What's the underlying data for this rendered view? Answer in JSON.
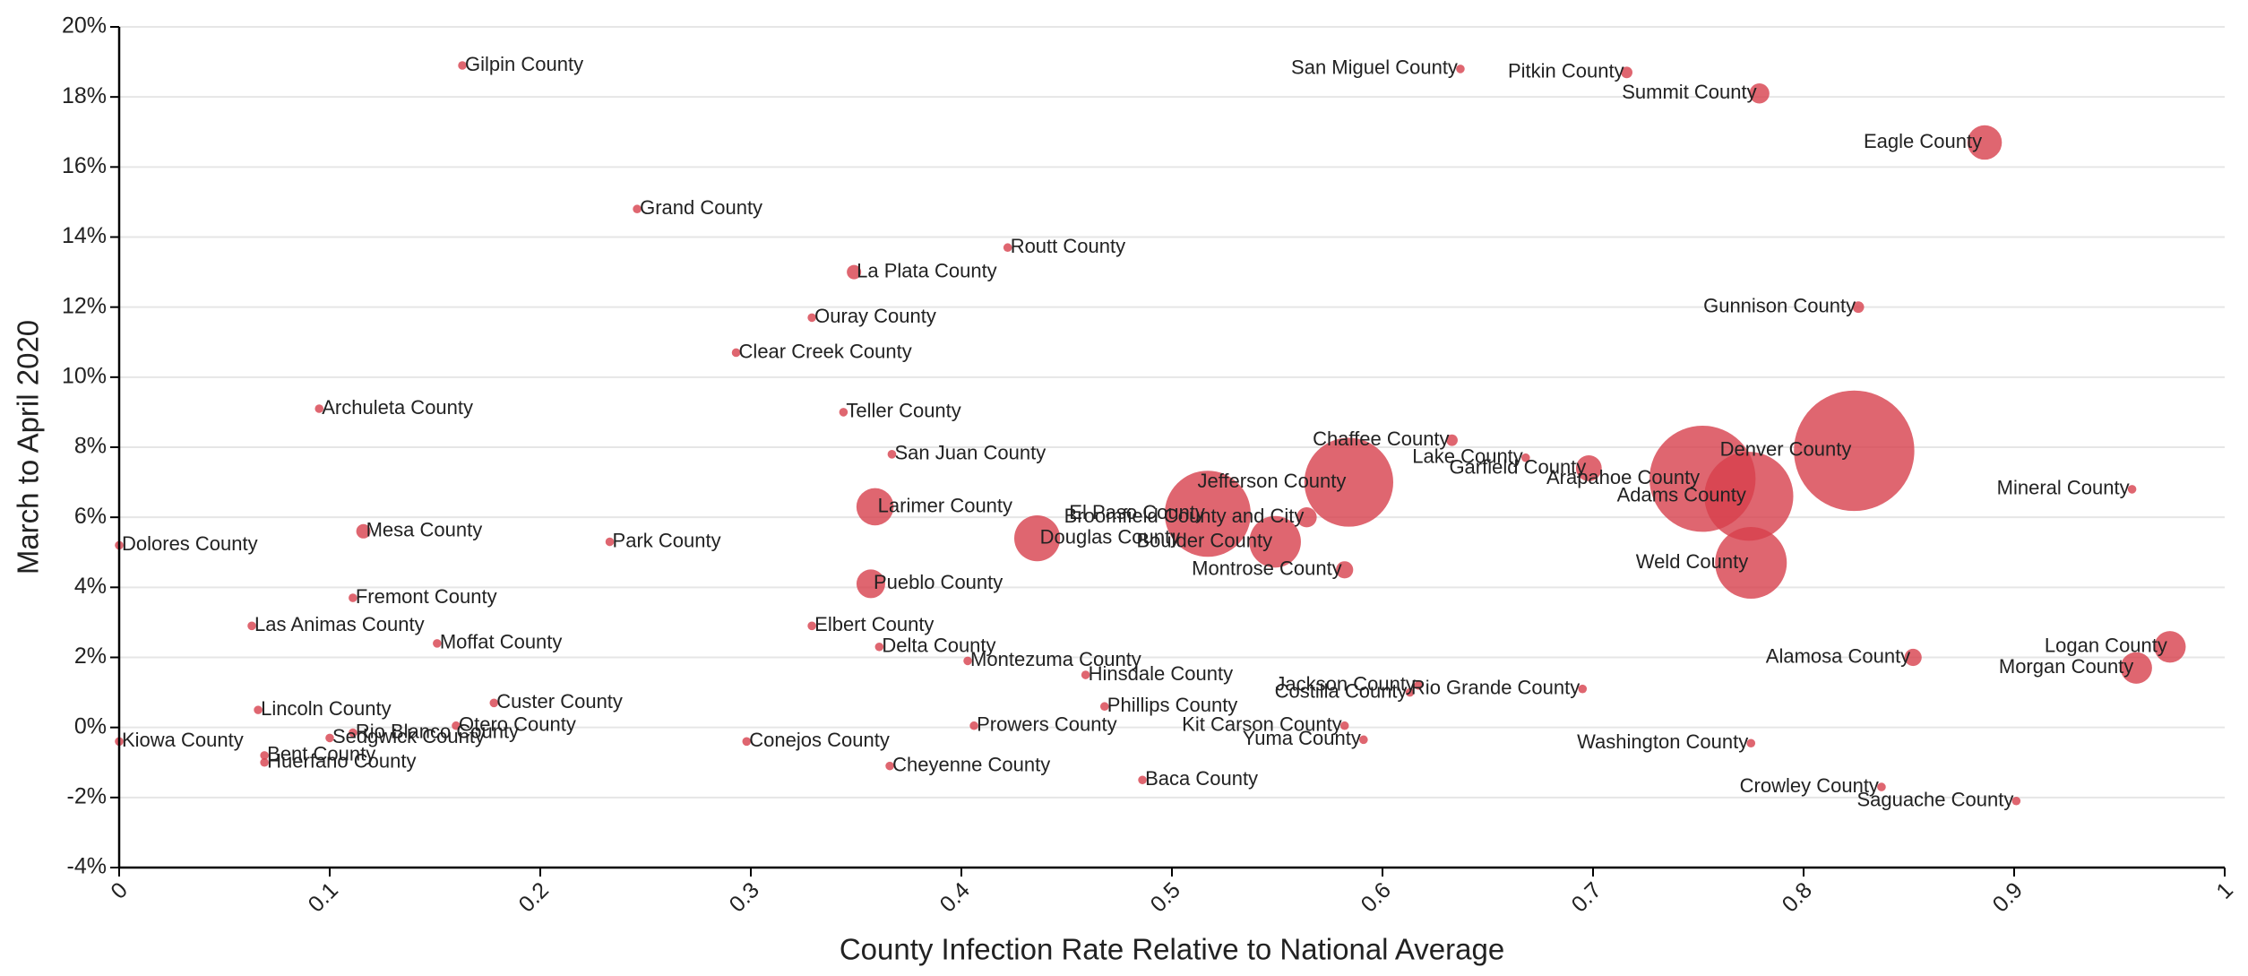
{
  "chart_data": {
    "type": "scatter",
    "x_label": "County Infection Rate Relative to National Average",
    "y_label": "March to April 2020",
    "color": "#d7404c",
    "grid": true,
    "xlim": [
      0,
      1
    ],
    "ylim": [
      -4,
      20
    ],
    "xticks": [
      0,
      0.1,
      0.2,
      0.3,
      0.4,
      0.5,
      0.6,
      0.7,
      0.8,
      0.9,
      1
    ],
    "yticks": [
      {
        "value": -4,
        "label": "-4%"
      },
      {
        "value": -2,
        "label": "-2%"
      },
      {
        "value": 0,
        "label": "0%"
      },
      {
        "value": 2,
        "label": "2%"
      },
      {
        "value": 4,
        "label": "4%"
      },
      {
        "value": 6,
        "label": "6%"
      },
      {
        "value": 8,
        "label": "8%"
      },
      {
        "value": 10,
        "label": "10%"
      },
      {
        "value": 12,
        "label": "12%"
      },
      {
        "value": 14,
        "label": "14%"
      },
      {
        "value": 16,
        "label": "16%"
      },
      {
        "value": 18,
        "label": "18%"
      },
      {
        "value": 20,
        "label": "20%"
      }
    ],
    "categories": [
      "Gilpin County",
      "San Miguel County",
      "Pitkin County",
      "Summit County",
      "Eagle County",
      "Grand County",
      "Routt County",
      "La Plata County",
      "Ouray County",
      "Gunnison County",
      "Clear Creek County",
      "Archuleta County",
      "Teller County",
      "San Juan County",
      "Chaffee County",
      "Lake County",
      "Garfield County",
      "Denver County",
      "Arapahoe County",
      "Adams County",
      "Mineral County",
      "Jefferson County",
      "Larimer County",
      "El Paso County",
      "Broomfield County and City",
      "Douglas County",
      "Boulder County",
      "Montrose County",
      "Weld County",
      "Mesa County",
      "Park County",
      "Dolores County",
      "Fremont County",
      "Pueblo County",
      "Las Animas County",
      "Moffat County",
      "Elbert County",
      "Delta County",
      "Montezuma County",
      "Hinsdale County",
      "Alamosa County",
      "Logan County",
      "Morgan County",
      "Jackson County",
      "Costilla County",
      "Rio Grande County",
      "Custer County",
      "Phillips County",
      "Lincoln County",
      "Prowers County",
      "Kit Carson County",
      "Otero County",
      "Rio Blanco County",
      "Sedgwick County",
      "Yuma County",
      "Kiowa County",
      "Conejos County",
      "Washington County",
      "Bent County",
      "Huerfano County",
      "Cheyenne County",
      "Baca County",
      "Crowley County",
      "Saguache County"
    ],
    "x": [
      0.163,
      0.637,
      0.716,
      0.779,
      0.886,
      0.246,
      0.422,
      0.349,
      0.329,
      0.826,
      0.293,
      0.095,
      0.344,
      0.367,
      0.633,
      0.668,
      0.698,
      0.824,
      0.752,
      0.774,
      0.956,
      0.584,
      0.359,
      0.517,
      0.564,
      0.436,
      0.549,
      0.582,
      0.775,
      0.116,
      0.233,
      0.0,
      0.111,
      0.357,
      0.063,
      0.151,
      0.329,
      0.361,
      0.403,
      0.459,
      0.852,
      0.974,
      0.958,
      0.617,
      0.613,
      0.695,
      0.178,
      0.468,
      0.066,
      0.406,
      0.582,
      0.16,
      0.111,
      0.1,
      0.591,
      0.0,
      0.298,
      0.775,
      0.069,
      0.069,
      0.366,
      0.486,
      0.837,
      0.901
    ],
    "values": [
      18.9,
      18.8,
      18.7,
      18.1,
      16.7,
      14.8,
      13.7,
      13.0,
      11.7,
      12.0,
      10.7,
      9.1,
      9.0,
      7.8,
      8.2,
      7.7,
      7.4,
      7.9,
      7.1,
      6.6,
      6.8,
      7.0,
      6.3,
      6.1,
      6.0,
      5.4,
      5.3,
      4.5,
      4.7,
      5.6,
      5.3,
      5.2,
      3.7,
      4.1,
      2.9,
      2.4,
      2.9,
      2.3,
      1.9,
      1.5,
      2.0,
      2.3,
      1.7,
      1.2,
      1.0,
      1.1,
      0.7,
      0.6,
      0.5,
      0.05,
      0.05,
      0.05,
      -0.15,
      -0.3,
      -0.35,
      -0.4,
      -0.4,
      -0.45,
      -0.8,
      -1.0,
      -1.1,
      -1.5,
      -1.7,
      -2.1
    ],
    "sizes": [
      9,
      9,
      16,
      49,
      144,
      9,
      9,
      25,
      9,
      16,
      9,
      9,
      9,
      9,
      16,
      9,
      81,
      1764,
      1369,
      961,
      9,
      961,
      169,
      900,
      49,
      256,
      324,
      36,
      625,
      25,
      9,
      9,
      9,
      100,
      9,
      9,
      9,
      9,
      9,
      9,
      36,
      121,
      121,
      9,
      9,
      9,
      9,
      9,
      9,
      9,
      9,
      9,
      9,
      9,
      9,
      9,
      9,
      9,
      9,
      9,
      9,
      9,
      9,
      9
    ]
  }
}
